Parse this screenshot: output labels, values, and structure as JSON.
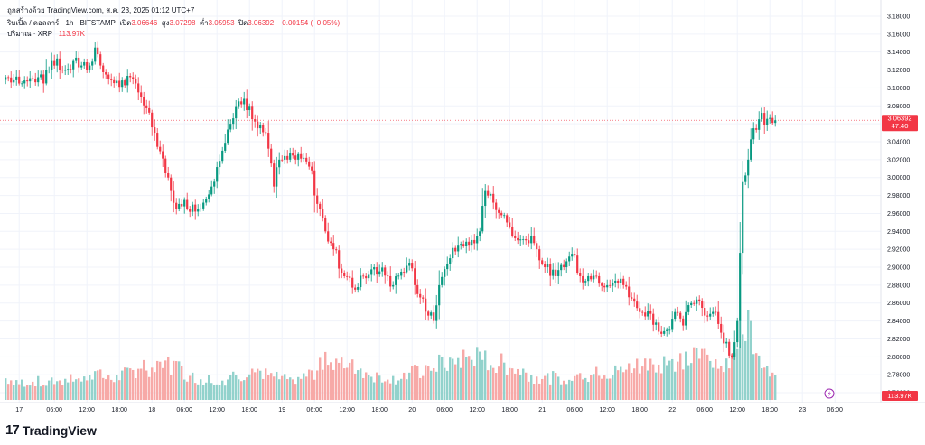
{
  "header": {
    "published_by": "ถูกสร้างด้วย TradingView.com, ส.ค. 23, 2025 01:12 UTC+7",
    "symbol": "ริบเปิ้ล / ดอลลาร์ · 1h · BITSTAMP",
    "open_label": "เปิด",
    "open_value": "3.06646",
    "high_label": "สูง",
    "high_value": "3.07298",
    "low_label": "ต่ำ",
    "low_value": "3.05953",
    "close_label": "ปิด",
    "close_value": "3.06392",
    "change": "−0.00154 (−0.05%)",
    "volume_label": "ปริมาณ · XRP",
    "volume_value": "113.97K"
  },
  "price_tag": {
    "price": "3.06392",
    "countdown": "47:40"
  },
  "volume_tag": "113.97K",
  "brand": {
    "name": "TradingView",
    "logo": "tradingview-logo"
  },
  "colors": {
    "up": "#089981",
    "down": "#f23645",
    "vol_up": "#92d2cc",
    "vol_down": "#f7a9a7",
    "grid": "#f0f3fa"
  },
  "chart_data": {
    "type": "candlestick",
    "y_ticks": [
      "3.18000",
      "3.16000",
      "3.14000",
      "3.12000",
      "3.10000",
      "3.08000",
      "3.06000",
      "3.04000",
      "3.02000",
      "3.00000",
      "2.98000",
      "2.96000",
      "2.94000",
      "2.92000",
      "2.90000",
      "2.88000",
      "2.86000",
      "2.84000",
      "2.82000",
      "2.80000",
      "2.78000",
      "2.76000"
    ],
    "ylim": [
      2.752,
      3.186
    ],
    "x_ticks": [
      "17",
      "06:00",
      "12:00",
      "18:00",
      "18",
      "06:00",
      "12:00",
      "18:00",
      "19",
      "06:00",
      "12:00",
      "18:00",
      "20",
      "06:00",
      "12:00",
      "18:00",
      "21",
      "06:00",
      "12:00",
      "18:00",
      "22",
      "06:00",
      "12:00",
      "18:00",
      "23",
      "06:00"
    ],
    "x_tick_bars": [
      5,
      18,
      30,
      42,
      54,
      66,
      78,
      90,
      102,
      114,
      126,
      138,
      150,
      162,
      174,
      186,
      198,
      210,
      222,
      234,
      246,
      258,
      270,
      282,
      294,
      306
    ],
    "last_price": 3.06392,
    "waypoints": [
      [
        0,
        3.112,
        30
      ],
      [
        6,
        3.105,
        24
      ],
      [
        12,
        3.112,
        26
      ],
      [
        14,
        3.105,
        22
      ],
      [
        17,
        3.13,
        28
      ],
      [
        22,
        3.12,
        25
      ],
      [
        25,
        3.13,
        30
      ],
      [
        28,
        3.125,
        27
      ],
      [
        31,
        3.125,
        35
      ],
      [
        33,
        3.145,
        42
      ],
      [
        35,
        3.125,
        33
      ],
      [
        38,
        3.11,
        28
      ],
      [
        41,
        3.108,
        30
      ],
      [
        44,
        3.103,
        35
      ],
      [
        46,
        3.112,
        38
      ],
      [
        48,
        3.105,
        42
      ],
      [
        50,
        3.09,
        52
      ],
      [
        55,
        3.05,
        40
      ],
      [
        60,
        3.0,
        48
      ],
      [
        63,
        2.965,
        48
      ],
      [
        66,
        2.975,
        35
      ],
      [
        70,
        2.962,
        30
      ],
      [
        73,
        2.972,
        28
      ],
      [
        76,
        2.99,
        30
      ],
      [
        80,
        3.03,
        27
      ],
      [
        83,
        3.06,
        30
      ],
      [
        86,
        3.085,
        33
      ],
      [
        90,
        3.08,
        40
      ],
      [
        93,
        3.055,
        42
      ],
      [
        96,
        3.05,
        35
      ],
      [
        99,
        2.99,
        33
      ],
      [
        101,
        3.02,
        30
      ],
      [
        104,
        3.02,
        28
      ],
      [
        107,
        3.02,
        30
      ],
      [
        111,
        3.018,
        32
      ],
      [
        113,
        3.008,
        36
      ],
      [
        114,
        2.98,
        38
      ],
      [
        116,
        2.965,
        45
      ],
      [
        118,
        2.94,
        60
      ],
      [
        121,
        2.92,
        58
      ],
      [
        125,
        2.89,
        52
      ],
      [
        129,
        2.875,
        45
      ],
      [
        132,
        2.89,
        40
      ],
      [
        136,
        2.9,
        34
      ],
      [
        141,
        2.89,
        30
      ],
      [
        143,
        2.88,
        29
      ],
      [
        146,
        2.895,
        32
      ],
      [
        149,
        2.905,
        35
      ],
      [
        152,
        2.87,
        40
      ],
      [
        154,
        2.865,
        40
      ],
      [
        156,
        2.846,
        45
      ],
      [
        158,
        2.84,
        48
      ],
      [
        160,
        2.88,
        50
      ],
      [
        164,
        2.91,
        52
      ],
      [
        167,
        2.925,
        56
      ],
      [
        171,
        2.925,
        60
      ],
      [
        175,
        2.94,
        58
      ],
      [
        177,
        2.985,
        56
      ],
      [
        180,
        2.972,
        52
      ],
      [
        183,
        2.958,
        50
      ],
      [
        186,
        2.945,
        45
      ],
      [
        189,
        2.93,
        42
      ],
      [
        192,
        2.93,
        38
      ],
      [
        194,
        2.935,
        34
      ],
      [
        196,
        2.92,
        30
      ],
      [
        199,
        2.9,
        30
      ],
      [
        203,
        2.89,
        31
      ],
      [
        206,
        2.9,
        30
      ],
      [
        209,
        2.915,
        30
      ],
      [
        212,
        2.89,
        33
      ],
      [
        215,
        2.89,
        34
      ],
      [
        218,
        2.89,
        36
      ],
      [
        222,
        2.88,
        38
      ],
      [
        225,
        2.885,
        40
      ],
      [
        228,
        2.88,
        42
      ],
      [
        231,
        2.865,
        44
      ],
      [
        234,
        2.85,
        48
      ],
      [
        238,
        2.848,
        50
      ],
      [
        241,
        2.828,
        52
      ],
      [
        244,
        2.83,
        54
      ],
      [
        247,
        2.85,
        55
      ],
      [
        250,
        2.835,
        56
      ],
      [
        253,
        2.86,
        58
      ],
      [
        256,
        2.862,
        60
      ],
      [
        259,
        2.845,
        60
      ],
      [
        262,
        2.85,
        58
      ],
      [
        265,
        2.815,
        55
      ],
      [
        268,
        2.8,
        50
      ],
      [
        270,
        2.84,
        65
      ],
      [
        272,
        2.995,
        120
      ],
      [
        274,
        3.02,
        110
      ],
      [
        276,
        3.055,
        90
      ],
      [
        278,
        3.065,
        70
      ],
      [
        281,
        3.0655,
        45
      ],
      [
        284,
        3.0639,
        35
      ]
    ],
    "volume_scale": "thousands of XRP (approximate)"
  }
}
